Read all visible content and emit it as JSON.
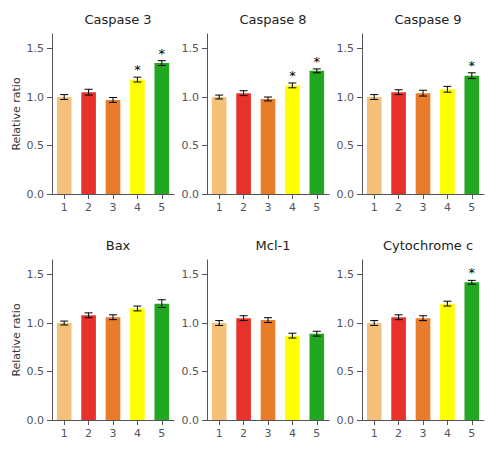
{
  "chart_data": [
    {
      "type": "bar",
      "title": "Caspase 3",
      "ylabel": "Relative ratio",
      "categories": [
        "1",
        "2",
        "3",
        "4",
        "5"
      ],
      "values": [
        1.0,
        1.05,
        0.97,
        1.18,
        1.35
      ],
      "errors": [
        0.025,
        0.03,
        0.025,
        0.025,
        0.025
      ],
      "annotations": [
        null,
        null,
        null,
        "*",
        "*"
      ],
      "colors": [
        "#F5C07A",
        "#E8312A",
        "#E87C2A",
        "#FFFF00",
        "#22A820"
      ],
      "ylim": [
        0,
        1.65
      ],
      "yticks": [
        {
          "value": 0,
          "label": "0.0"
        },
        {
          "value": 0.5,
          "label": "0.5"
        },
        {
          "value": 1,
          "label": "1.0"
        },
        {
          "value": 1.5,
          "label": "1.5"
        }
      ],
      "grid": false
    },
    {
      "type": "bar",
      "title": "Caspase 8",
      "categories": [
        "1",
        "2",
        "3",
        "4",
        "5"
      ],
      "values": [
        1.0,
        1.04,
        0.98,
        1.12,
        1.27
      ],
      "errors": [
        0.02,
        0.025,
        0.02,
        0.025,
        0.02
      ],
      "annotations": [
        null,
        null,
        null,
        "*",
        "*"
      ],
      "colors": [
        "#F5C07A",
        "#E8312A",
        "#E87C2A",
        "#FFFF00",
        "#22A820"
      ],
      "ylim": [
        0,
        1.65
      ],
      "yticks": [
        {
          "value": 0,
          "label": "0.0"
        },
        {
          "value": 0.5,
          "label": "0.5"
        },
        {
          "value": 1,
          "label": "1.0"
        },
        {
          "value": 1.5,
          "label": "1.5"
        }
      ],
      "grid": false
    },
    {
      "type": "bar",
      "title": "Caspase 9",
      "categories": [
        "1",
        "2",
        "3",
        "4",
        "5"
      ],
      "values": [
        1.0,
        1.05,
        1.04,
        1.08,
        1.22
      ],
      "errors": [
        0.025,
        0.025,
        0.03,
        0.03,
        0.03
      ],
      "annotations": [
        null,
        null,
        null,
        null,
        "*"
      ],
      "colors": [
        "#F5C07A",
        "#E8312A",
        "#E87C2A",
        "#FFFF00",
        "#22A820"
      ],
      "ylim": [
        0,
        1.65
      ],
      "yticks": [
        {
          "value": 0,
          "label": "0.0"
        },
        {
          "value": 0.5,
          "label": "0.5"
        },
        {
          "value": 1,
          "label": "1.0"
        },
        {
          "value": 1.5,
          "label": "1.5"
        }
      ],
      "grid": false
    },
    {
      "type": "bar",
      "title": "Bax",
      "ylabel": "Relative ratio",
      "categories": [
        "1",
        "2",
        "3",
        "4",
        "5"
      ],
      "values": [
        1.0,
        1.08,
        1.06,
        1.15,
        1.2
      ],
      "errors": [
        0.02,
        0.025,
        0.025,
        0.025,
        0.04
      ],
      "colors": [
        "#F5C07A",
        "#E8312A",
        "#E87C2A",
        "#FFFF00",
        "#22A820"
      ],
      "ylim": [
        0,
        1.65
      ],
      "yticks": [
        {
          "value": 0,
          "label": "0.0"
        },
        {
          "value": 0.5,
          "label": "0.5"
        },
        {
          "value": 1,
          "label": "1.0"
        },
        {
          "value": 1.5,
          "label": "1.5"
        }
      ],
      "grid": false
    },
    {
      "type": "bar",
      "title": "Mcl-1",
      "categories": [
        "1",
        "2",
        "3",
        "4",
        "5"
      ],
      "values": [
        1.0,
        1.05,
        1.03,
        0.87,
        0.89
      ],
      "errors": [
        0.025,
        0.025,
        0.025,
        0.025,
        0.025
      ],
      "colors": [
        "#F5C07A",
        "#E8312A",
        "#E87C2A",
        "#FFFF00",
        "#22A820"
      ],
      "ylim": [
        0,
        1.65
      ],
      "yticks": [
        {
          "value": 0,
          "label": "0.0"
        },
        {
          "value": 0.5,
          "label": "0.5"
        },
        {
          "value": 1,
          "label": "1.0"
        },
        {
          "value": 1.5,
          "label": "1.5"
        }
      ],
      "grid": false
    },
    {
      "type": "bar",
      "title": "Cytochrome c",
      "categories": [
        "1",
        "2",
        "3",
        "4",
        "5"
      ],
      "values": [
        1.0,
        1.06,
        1.05,
        1.2,
        1.42
      ],
      "errors": [
        0.025,
        0.025,
        0.025,
        0.025,
        0.02
      ],
      "annotations": [
        null,
        null,
        null,
        null,
        "*"
      ],
      "colors": [
        "#F5C07A",
        "#E8312A",
        "#E87C2A",
        "#FFFF00",
        "#22A820"
      ],
      "ylim": [
        0,
        1.65
      ],
      "yticks": [
        {
          "value": 0,
          "label": "0.0"
        },
        {
          "value": 0.5,
          "label": "0.5"
        },
        {
          "value": 1,
          "label": "1.0"
        },
        {
          "value": 1.5,
          "label": "1.5"
        }
      ],
      "grid": false
    }
  ]
}
